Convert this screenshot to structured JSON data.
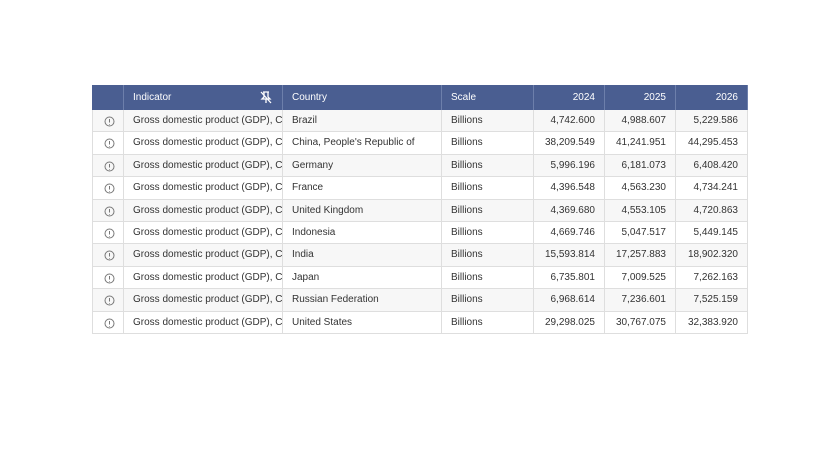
{
  "table": {
    "columns": [
      "Indicator",
      "Country",
      "Scale",
      "2024",
      "2025",
      "2026"
    ],
    "rows": [
      [
        "Gross domestic product (GDP), Cu",
        "Brazil",
        "Billions",
        "4,742.600",
        "4,988.607",
        "5,229.586"
      ],
      [
        "Gross domestic product (GDP), Cu",
        "China, People's Republic of",
        "Billions",
        "38,209.549",
        "41,241.951",
        "44,295.453"
      ],
      [
        "Gross domestic product (GDP), Cu",
        "Germany",
        "Billions",
        "5,996.196",
        "6,181.073",
        "6,408.420"
      ],
      [
        "Gross domestic product (GDP), Cu",
        "France",
        "Billions",
        "4,396.548",
        "4,563.230",
        "4,734.241"
      ],
      [
        "Gross domestic product (GDP), Cu",
        "United Kingdom",
        "Billions",
        "4,369.680",
        "4,553.105",
        "4,720.863"
      ],
      [
        "Gross domestic product (GDP), Cu",
        "Indonesia",
        "Billions",
        "4,669.746",
        "5,047.517",
        "5,449.145"
      ],
      [
        "Gross domestic product (GDP), Cu",
        "India",
        "Billions",
        "15,593.814",
        "17,257.883",
        "18,902.320"
      ],
      [
        "Gross domestic product (GDP), Cu",
        "Japan",
        "Billions",
        "6,735.801",
        "7,009.525",
        "7,262.163"
      ],
      [
        "Gross domestic product (GDP), Cu",
        "Russian Federation",
        "Billions",
        "6,968.614",
        "7,236.601",
        "7,525.159"
      ],
      [
        "Gross domestic product (GDP), Cu",
        "United States",
        "Billions",
        "29,298.025",
        "30,767.075",
        "32,383.920"
      ]
    ]
  }
}
